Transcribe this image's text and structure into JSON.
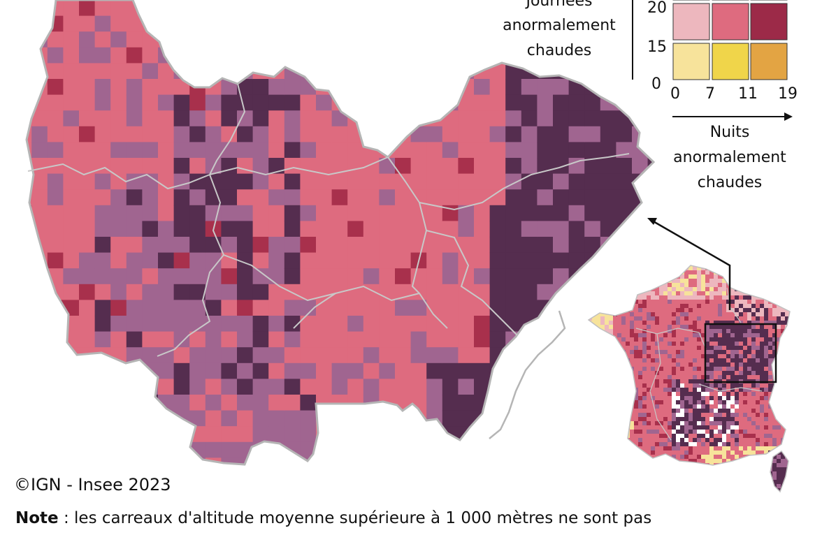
{
  "legend": {
    "y_title_lines": [
      "Journées",
      "anormalement",
      "chaudes"
    ],
    "x_title_lines": [
      "Nuits",
      "anormalement",
      "chaudes"
    ],
    "y_ticks": [
      "20",
      "15",
      "0"
    ],
    "x_ticks": [
      "0",
      "7",
      "11",
      "19"
    ],
    "palette": {
      "row_top": [
        "#d7a6bf",
        "#a06590",
        "#552d4f"
      ],
      "row_mid": [
        "#edb7be",
        "#de6b7f",
        "#9c2a48"
      ],
      "row_low": [
        "#f7e39b",
        "#f0d54a",
        "#e3a443"
      ]
    }
  },
  "map_colors": {
    "pink": "#de6b7f",
    "mauve": "#a06590",
    "dark": "#552d4f",
    "crimson": "#a8304c",
    "light_pink": "#edb7be",
    "yellow": "#f7e39b",
    "border": "#b5b5b5"
  },
  "credit": "©IGN - Insee 2023",
  "note": {
    "label": "Note",
    "text": " : les carreaux d'altitude moyenne supérieure à 1 000 mètres ne sont pas"
  }
}
